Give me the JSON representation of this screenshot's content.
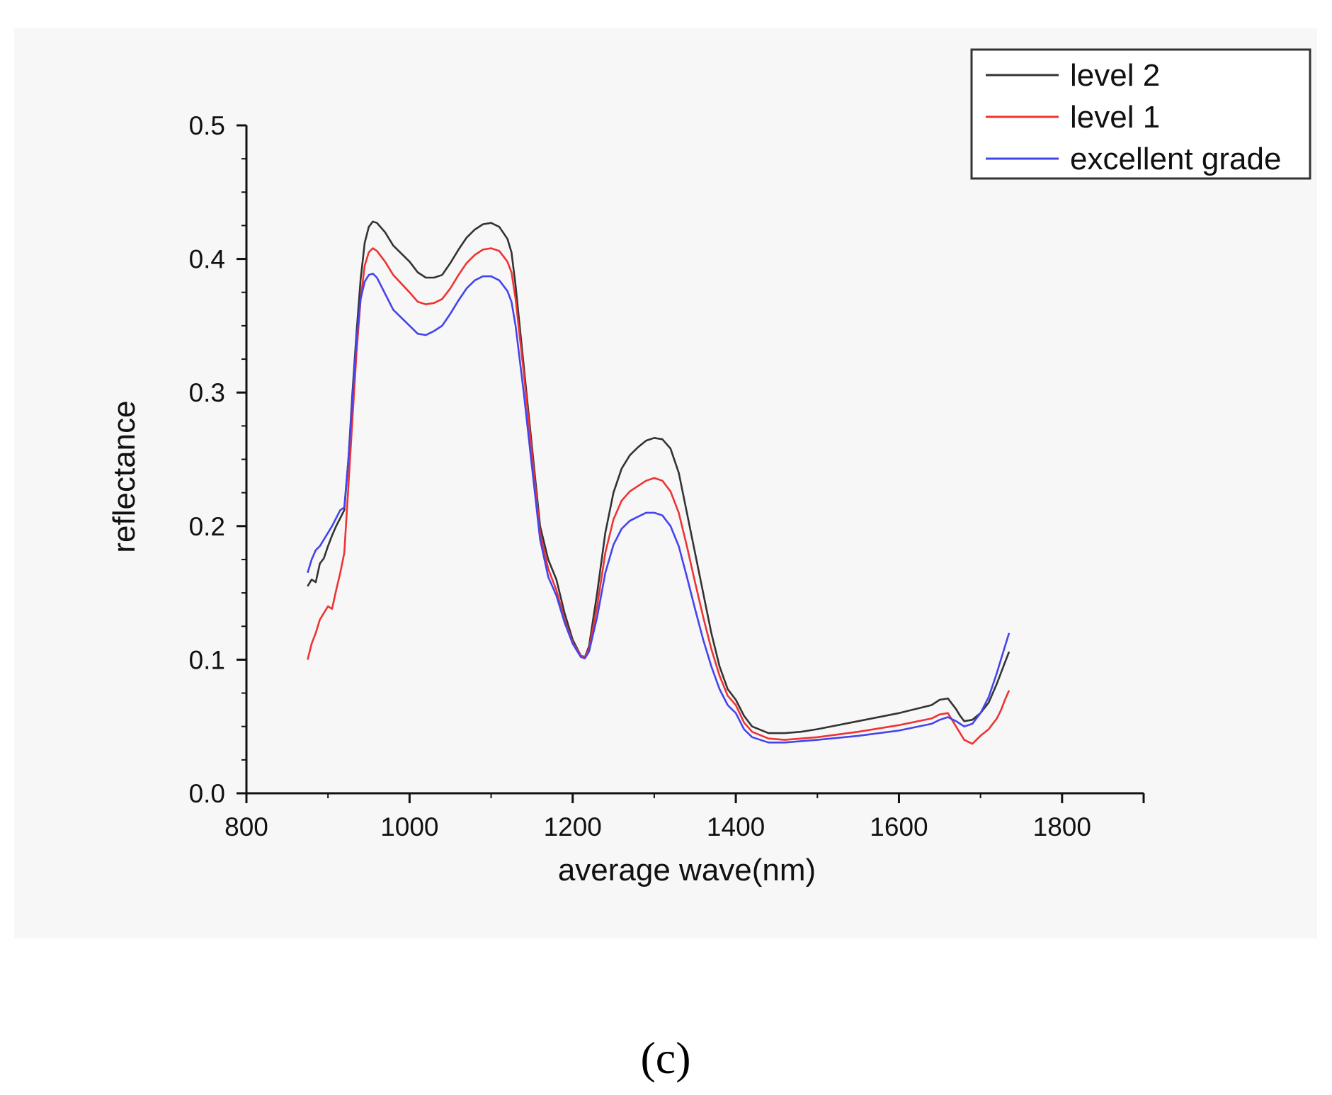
{
  "chart_data": {
    "type": "line",
    "title": "",
    "xlabel": "average wave(nm)",
    "ylabel": "reflectance",
    "xlim": [
      800,
      1900
    ],
    "ylim": [
      0,
      0.5
    ],
    "xticks": [
      800,
      1000,
      1200,
      1400,
      1600,
      1800
    ],
    "yticks": [
      0.0,
      0.1,
      0.2,
      0.3,
      0.4,
      0.5
    ],
    "xtick_labels": [
      "800",
      "1000",
      "1200",
      "1400",
      "1600",
      "1800"
    ],
    "ytick_labels": [
      "0.0",
      "0.1",
      "0.2",
      "0.3",
      "0.4",
      "0.5"
    ],
    "grid": false,
    "legend_position": "top-right",
    "series": [
      {
        "name": "level 2",
        "color": "#333333",
        "points": [
          [
            875,
            0.155
          ],
          [
            880,
            0.16
          ],
          [
            885,
            0.158
          ],
          [
            890,
            0.172
          ],
          [
            895,
            0.176
          ],
          [
            900,
            0.185
          ],
          [
            905,
            0.193
          ],
          [
            910,
            0.2
          ],
          [
            915,
            0.206
          ],
          [
            920,
            0.212
          ],
          [
            925,
            0.25
          ],
          [
            930,
            0.3
          ],
          [
            935,
            0.345
          ],
          [
            940,
            0.385
          ],
          [
            945,
            0.412
          ],
          [
            950,
            0.424
          ],
          [
            955,
            0.428
          ],
          [
            960,
            0.427
          ],
          [
            970,
            0.42
          ],
          [
            980,
            0.41
          ],
          [
            1000,
            0.398
          ],
          [
            1010,
            0.39
          ],
          [
            1020,
            0.386
          ],
          [
            1030,
            0.386
          ],
          [
            1040,
            0.388
          ],
          [
            1050,
            0.397
          ],
          [
            1060,
            0.407
          ],
          [
            1070,
            0.416
          ],
          [
            1080,
            0.422
          ],
          [
            1090,
            0.426
          ],
          [
            1100,
            0.427
          ],
          [
            1110,
            0.424
          ],
          [
            1120,
            0.415
          ],
          [
            1125,
            0.405
          ],
          [
            1130,
            0.38
          ],
          [
            1140,
            0.32
          ],
          [
            1150,
            0.26
          ],
          [
            1160,
            0.2
          ],
          [
            1170,
            0.175
          ],
          [
            1180,
            0.16
          ],
          [
            1190,
            0.135
          ],
          [
            1200,
            0.115
          ],
          [
            1210,
            0.103
          ],
          [
            1215,
            0.102
          ],
          [
            1220,
            0.11
          ],
          [
            1230,
            0.15
          ],
          [
            1240,
            0.195
          ],
          [
            1250,
            0.225
          ],
          [
            1260,
            0.243
          ],
          [
            1270,
            0.253
          ],
          [
            1280,
            0.259
          ],
          [
            1290,
            0.264
          ],
          [
            1300,
            0.266
          ],
          [
            1310,
            0.265
          ],
          [
            1320,
            0.258
          ],
          [
            1330,
            0.24
          ],
          [
            1340,
            0.21
          ],
          [
            1350,
            0.18
          ],
          [
            1360,
            0.15
          ],
          [
            1370,
            0.12
          ],
          [
            1380,
            0.095
          ],
          [
            1390,
            0.078
          ],
          [
            1400,
            0.07
          ],
          [
            1410,
            0.058
          ],
          [
            1420,
            0.05
          ],
          [
            1440,
            0.045
          ],
          [
            1460,
            0.045
          ],
          [
            1480,
            0.046
          ],
          [
            1500,
            0.048
          ],
          [
            1550,
            0.054
          ],
          [
            1600,
            0.06
          ],
          [
            1640,
            0.066
          ],
          [
            1650,
            0.07
          ],
          [
            1660,
            0.071
          ],
          [
            1670,
            0.063
          ],
          [
            1675,
            0.058
          ],
          [
            1680,
            0.054
          ],
          [
            1690,
            0.055
          ],
          [
            1700,
            0.06
          ],
          [
            1710,
            0.068
          ],
          [
            1720,
            0.082
          ],
          [
            1725,
            0.09
          ],
          [
            1730,
            0.098
          ],
          [
            1735,
            0.106
          ]
        ]
      },
      {
        "name": "level 1",
        "color": "#ee3333",
        "points": [
          [
            875,
            0.1
          ],
          [
            880,
            0.112
          ],
          [
            885,
            0.12
          ],
          [
            890,
            0.13
          ],
          [
            895,
            0.135
          ],
          [
            900,
            0.14
          ],
          [
            905,
            0.138
          ],
          [
            910,
            0.152
          ],
          [
            915,
            0.165
          ],
          [
            920,
            0.18
          ],
          [
            925,
            0.23
          ],
          [
            930,
            0.28
          ],
          [
            935,
            0.33
          ],
          [
            940,
            0.37
          ],
          [
            945,
            0.395
          ],
          [
            950,
            0.405
          ],
          [
            955,
            0.408
          ],
          [
            960,
            0.406
          ],
          [
            970,
            0.398
          ],
          [
            980,
            0.388
          ],
          [
            1000,
            0.375
          ],
          [
            1010,
            0.368
          ],
          [
            1020,
            0.366
          ],
          [
            1030,
            0.367
          ],
          [
            1040,
            0.37
          ],
          [
            1050,
            0.378
          ],
          [
            1060,
            0.388
          ],
          [
            1070,
            0.397
          ],
          [
            1080,
            0.403
          ],
          [
            1090,
            0.407
          ],
          [
            1100,
            0.408
          ],
          [
            1110,
            0.406
          ],
          [
            1120,
            0.398
          ],
          [
            1125,
            0.39
          ],
          [
            1130,
            0.37
          ],
          [
            1140,
            0.315
          ],
          [
            1150,
            0.255
          ],
          [
            1160,
            0.195
          ],
          [
            1170,
            0.168
          ],
          [
            1180,
            0.152
          ],
          [
            1190,
            0.13
          ],
          [
            1200,
            0.113
          ],
          [
            1210,
            0.103
          ],
          [
            1215,
            0.102
          ],
          [
            1220,
            0.108
          ],
          [
            1230,
            0.14
          ],
          [
            1240,
            0.18
          ],
          [
            1250,
            0.205
          ],
          [
            1260,
            0.219
          ],
          [
            1270,
            0.226
          ],
          [
            1280,
            0.23
          ],
          [
            1290,
            0.234
          ],
          [
            1300,
            0.236
          ],
          [
            1310,
            0.234
          ],
          [
            1320,
            0.226
          ],
          [
            1330,
            0.21
          ],
          [
            1340,
            0.185
          ],
          [
            1350,
            0.158
          ],
          [
            1360,
            0.132
          ],
          [
            1370,
            0.108
          ],
          [
            1380,
            0.088
          ],
          [
            1390,
            0.073
          ],
          [
            1400,
            0.066
          ],
          [
            1410,
            0.053
          ],
          [
            1420,
            0.046
          ],
          [
            1440,
            0.041
          ],
          [
            1460,
            0.04
          ],
          [
            1480,
            0.041
          ],
          [
            1500,
            0.042
          ],
          [
            1550,
            0.046
          ],
          [
            1600,
            0.051
          ],
          [
            1640,
            0.056
          ],
          [
            1650,
            0.059
          ],
          [
            1660,
            0.06
          ],
          [
            1670,
            0.05
          ],
          [
            1675,
            0.045
          ],
          [
            1680,
            0.04
          ],
          [
            1690,
            0.037
          ],
          [
            1700,
            0.043
          ],
          [
            1710,
            0.048
          ],
          [
            1720,
            0.056
          ],
          [
            1725,
            0.062
          ],
          [
            1730,
            0.07
          ],
          [
            1735,
            0.077
          ]
        ]
      },
      {
        "name": "excellent grade",
        "color": "#4444ee",
        "points": [
          [
            875,
            0.165
          ],
          [
            880,
            0.175
          ],
          [
            885,
            0.182
          ],
          [
            890,
            0.185
          ],
          [
            895,
            0.19
          ],
          [
            900,
            0.195
          ],
          [
            905,
            0.2
          ],
          [
            910,
            0.206
          ],
          [
            915,
            0.212
          ],
          [
            920,
            0.214
          ],
          [
            925,
            0.25
          ],
          [
            930,
            0.295
          ],
          [
            935,
            0.34
          ],
          [
            940,
            0.37
          ],
          [
            945,
            0.383
          ],
          [
            950,
            0.388
          ],
          [
            955,
            0.389
          ],
          [
            960,
            0.386
          ],
          [
            970,
            0.374
          ],
          [
            980,
            0.362
          ],
          [
            1000,
            0.35
          ],
          [
            1010,
            0.344
          ],
          [
            1020,
            0.343
          ],
          [
            1030,
            0.346
          ],
          [
            1040,
            0.35
          ],
          [
            1050,
            0.359
          ],
          [
            1060,
            0.369
          ],
          [
            1070,
            0.378
          ],
          [
            1080,
            0.384
          ],
          [
            1090,
            0.387
          ],
          [
            1100,
            0.387
          ],
          [
            1110,
            0.384
          ],
          [
            1120,
            0.376
          ],
          [
            1125,
            0.368
          ],
          [
            1130,
            0.35
          ],
          [
            1140,
            0.3
          ],
          [
            1150,
            0.245
          ],
          [
            1160,
            0.19
          ],
          [
            1170,
            0.162
          ],
          [
            1180,
            0.148
          ],
          [
            1190,
            0.128
          ],
          [
            1200,
            0.112
          ],
          [
            1210,
            0.102
          ],
          [
            1215,
            0.101
          ],
          [
            1220,
            0.106
          ],
          [
            1230,
            0.132
          ],
          [
            1240,
            0.165
          ],
          [
            1250,
            0.186
          ],
          [
            1260,
            0.198
          ],
          [
            1270,
            0.204
          ],
          [
            1280,
            0.207
          ],
          [
            1290,
            0.21
          ],
          [
            1300,
            0.21
          ],
          [
            1310,
            0.208
          ],
          [
            1320,
            0.2
          ],
          [
            1330,
            0.185
          ],
          [
            1340,
            0.162
          ],
          [
            1350,
            0.138
          ],
          [
            1360,
            0.115
          ],
          [
            1370,
            0.095
          ],
          [
            1380,
            0.078
          ],
          [
            1390,
            0.066
          ],
          [
            1400,
            0.06
          ],
          [
            1410,
            0.048
          ],
          [
            1420,
            0.042
          ],
          [
            1440,
            0.038
          ],
          [
            1460,
            0.038
          ],
          [
            1480,
            0.039
          ],
          [
            1500,
            0.04
          ],
          [
            1550,
            0.043
          ],
          [
            1600,
            0.047
          ],
          [
            1640,
            0.052
          ],
          [
            1650,
            0.055
          ],
          [
            1660,
            0.057
          ],
          [
            1670,
            0.054
          ],
          [
            1675,
            0.052
          ],
          [
            1680,
            0.05
          ],
          [
            1690,
            0.052
          ],
          [
            1700,
            0.06
          ],
          [
            1710,
            0.072
          ],
          [
            1720,
            0.09
          ],
          [
            1725,
            0.1
          ],
          [
            1730,
            0.11
          ],
          [
            1735,
            0.12
          ]
        ]
      }
    ]
  },
  "caption": "(c)"
}
